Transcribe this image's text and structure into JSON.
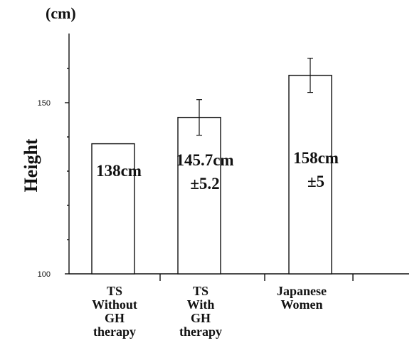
{
  "chart_data": {
    "type": "bar",
    "unit_label": "(cm)",
    "ylabel": "Height",
    "xlabel": "",
    "ylim": [
      100,
      170
    ],
    "y_ticks": [
      100,
      150
    ],
    "minor_ticks": [
      110,
      120,
      130,
      140,
      160
    ],
    "categories": [
      [
        "TS",
        "Without",
        "GH",
        "therapy"
      ],
      [
        "TS",
        "With",
        "GH",
        "therapy"
      ],
      [
        "Japanese",
        "Women"
      ]
    ],
    "values": [
      138,
      145.7,
      158
    ],
    "errors": [
      null,
      5.2,
      5
    ],
    "bar_labels": [
      [
        "138cm"
      ],
      [
        "145.7cm",
        "±5.2"
      ],
      [
        "158cm",
        "±5"
      ]
    ],
    "grid": false,
    "legend": "none"
  }
}
